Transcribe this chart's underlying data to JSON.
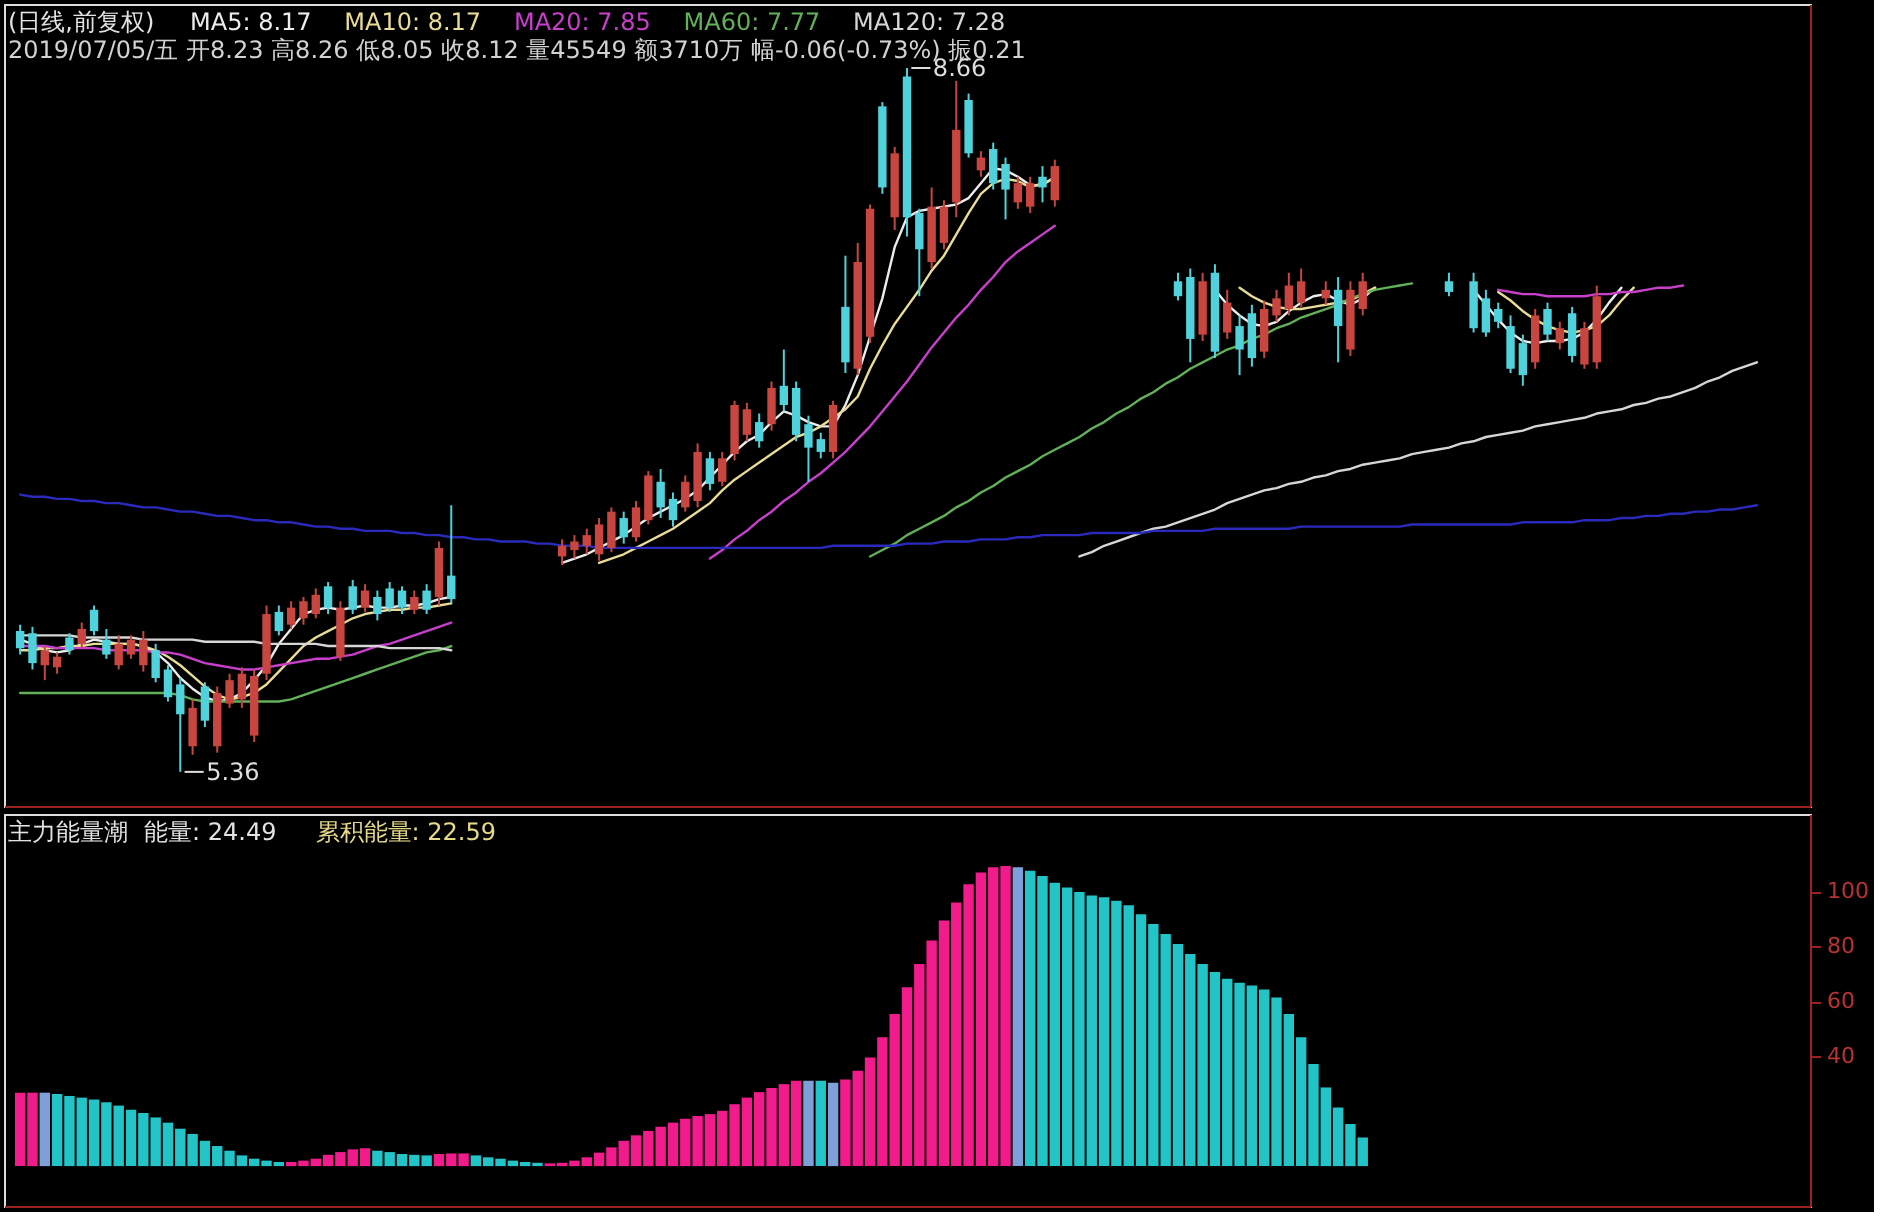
{
  "chart_data": [
    {
      "type": "candlestick",
      "title": "(日线,前复权)",
      "subtitle": "2019/07/05/五 开8.23 高8.26 低8.05 收8.12 量45549 额3710万 幅-0.06(-0.73%) 振0.21",
      "legend": "top left",
      "tick_labels": false,
      "ylim": [
        5.2,
        8.96
      ],
      "categories": [
        null,
        null,
        null,
        null,
        null,
        null,
        null,
        null,
        null,
        null,
        null,
        null,
        null,
        null,
        null,
        null,
        null,
        null,
        null,
        null,
        null,
        null,
        null,
        null,
        null,
        null,
        null,
        null,
        null,
        null,
        null,
        null,
        null,
        null,
        null,
        null,
        null,
        null,
        null,
        null,
        null,
        null,
        null,
        null,
        null,
        null,
        null,
        null,
        null,
        null,
        null,
        null,
        null,
        null,
        null,
        null,
        null,
        null,
        null,
        null,
        null,
        null,
        null,
        null,
        null,
        null,
        null,
        null,
        null,
        null,
        null,
        null,
        null,
        null,
        null,
        null,
        null,
        null,
        null,
        null,
        null,
        null,
        null,
        null,
        null,
        null,
        null,
        null,
        null,
        null,
        null,
        null,
        null,
        null,
        null,
        null,
        null,
        null,
        null,
        null,
        null,
        null,
        null,
        null,
        null,
        null,
        null,
        null,
        null,
        null,
        null,
        null,
        null,
        null,
        null,
        null,
        null,
        null,
        null,
        null,
        null,
        null,
        null,
        null,
        null,
        null,
        null,
        null,
        null,
        null,
        null,
        null,
        null,
        null,
        null,
        null,
        null,
        null,
        null,
        null,
        null,
        null
      ],
      "ohlc": [
        [
          6.02,
          6.05,
          5.91,
          5.94
        ],
        [
          6.01,
          6.04,
          5.84,
          5.87
        ],
        [
          5.86,
          5.95,
          5.79,
          5.93
        ],
        [
          5.85,
          5.92,
          5.82,
          5.9
        ],
        [
          5.99,
          6.01,
          5.91,
          5.93
        ],
        [
          5.96,
          6.06,
          5.94,
          6.03
        ],
        [
          6.12,
          6.14,
          6.0,
          6.02
        ],
        [
          5.98,
          6.03,
          5.89,
          5.91
        ],
        [
          5.86,
          6.0,
          5.84,
          5.96
        ],
        [
          5.91,
          6.0,
          5.89,
          5.98
        ],
        [
          5.86,
          6.02,
          5.83,
          5.98
        ],
        [
          5.93,
          5.96,
          5.78,
          5.8
        ],
        [
          5.84,
          5.86,
          5.69,
          5.71
        ],
        [
          5.77,
          5.8,
          5.36,
          5.63
        ],
        [
          5.48,
          5.7,
          5.44,
          5.66
        ],
        [
          5.76,
          5.78,
          5.57,
          5.6
        ],
        [
          5.48,
          5.76,
          5.45,
          5.73
        ],
        [
          5.68,
          5.82,
          5.66,
          5.79
        ],
        [
          5.7,
          5.85,
          5.66,
          5.82
        ],
        [
          5.53,
          5.84,
          5.5,
          5.81
        ],
        [
          5.82,
          6.14,
          5.79,
          6.1
        ],
        [
          6.11,
          6.14,
          6.0,
          6.02
        ],
        [
          6.05,
          6.16,
          6.03,
          6.13
        ],
        [
          6.08,
          6.18,
          6.05,
          6.16
        ],
        [
          6.1,
          6.22,
          6.08,
          6.19
        ],
        [
          6.23,
          6.25,
          6.1,
          6.13
        ],
        [
          5.9,
          6.16,
          5.88,
          6.13
        ],
        [
          6.23,
          6.26,
          6.1,
          6.12
        ],
        [
          6.13,
          6.24,
          6.11,
          6.21
        ],
        [
          6.18,
          6.21,
          6.07,
          6.1
        ],
        [
          6.22,
          6.25,
          6.11,
          6.13
        ],
        [
          6.21,
          6.23,
          6.1,
          6.13
        ],
        [
          6.12,
          6.21,
          6.1,
          6.18
        ],
        [
          6.21,
          6.24,
          6.1,
          6.12
        ],
        [
          6.18,
          6.44,
          6.14,
          6.41
        ],
        [
          6.28,
          6.61,
          6.15,
          6.17
        ],
        null,
        null,
        null,
        null,
        null,
        null,
        null,
        null,
        [
          6.37,
          6.45,
          6.33,
          6.42
        ],
        [
          6.4,
          6.47,
          6.36,
          6.44
        ],
        [
          6.42,
          6.5,
          6.38,
          6.47
        ],
        [
          6.38,
          6.55,
          6.35,
          6.52
        ],
        [
          6.41,
          6.6,
          6.39,
          6.58
        ],
        [
          6.55,
          6.58,
          6.43,
          6.46
        ],
        [
          6.46,
          6.63,
          6.44,
          6.6
        ],
        [
          6.54,
          6.77,
          6.52,
          6.75
        ],
        [
          6.72,
          6.78,
          6.55,
          6.6
        ],
        [
          6.64,
          6.67,
          6.51,
          6.54
        ],
        [
          6.6,
          6.75,
          6.58,
          6.72
        ],
        [
          6.63,
          6.9,
          6.6,
          6.86
        ],
        [
          6.83,
          6.86,
          6.68,
          6.71
        ],
        [
          6.72,
          6.86,
          6.7,
          6.83
        ],
        [
          6.85,
          7.1,
          6.82,
          7.08
        ],
        [
          6.94,
          7.09,
          6.91,
          7.06
        ],
        [
          7.0,
          7.04,
          6.88,
          6.91
        ],
        [
          6.99,
          7.19,
          6.96,
          7.16
        ],
        [
          7.17,
          7.34,
          7.05,
          7.08
        ],
        [
          7.16,
          7.19,
          6.91,
          6.94
        ],
        [
          6.99,
          7.03,
          6.72,
          6.88
        ],
        [
          6.92,
          6.95,
          6.83,
          6.86
        ],
        [
          6.86,
          7.1,
          6.83,
          7.08
        ],
        [
          7.54,
          7.78,
          7.23,
          7.28
        ],
        [
          7.25,
          7.84,
          7.22,
          7.75
        ],
        [
          7.4,
          8.02,
          7.37,
          8.0
        ],
        [
          8.48,
          8.5,
          8.07,
          8.1
        ],
        [
          7.96,
          8.29,
          7.9,
          8.26
        ],
        [
          8.62,
          8.66,
          7.87,
          7.96
        ],
        [
          7.98,
          8.0,
          7.59,
          7.81
        ],
        [
          7.75,
          8.1,
          7.72,
          8.01
        ],
        [
          7.84,
          8.04,
          7.81,
          8.01
        ],
        [
          8.03,
          8.6,
          7.96,
          8.37
        ],
        [
          8.51,
          8.54,
          8.24,
          8.26
        ],
        [
          8.18,
          8.27,
          8.15,
          8.24
        ],
        [
          8.28,
          8.31,
          8.09,
          8.12
        ],
        [
          8.21,
          8.24,
          7.95,
          8.09
        ],
        [
          8.03,
          8.15,
          8.0,
          8.12
        ],
        [
          8.01,
          8.15,
          7.98,
          8.12
        ],
        [
          8.15,
          8.2,
          8.03,
          8.1
        ],
        [
          8.04,
          8.23,
          8.01,
          8.2
        ],
        null,
        null,
        null,
        null,
        null,
        null,
        null,
        null,
        null,
        [
          7.66,
          7.7,
          7.57,
          7.59
        ],
        [
          7.68,
          7.72,
          7.28,
          7.39
        ],
        [
          7.41,
          7.7,
          7.38,
          7.66
        ],
        [
          7.7,
          7.74,
          7.3,
          7.33
        ],
        [
          7.42,
          7.62,
          7.39,
          7.56
        ],
        [
          7.45,
          7.5,
          7.22,
          7.34
        ],
        [
          7.51,
          7.55,
          7.26,
          7.3
        ],
        [
          7.33,
          7.57,
          7.3,
          7.53
        ],
        [
          7.5,
          7.62,
          7.47,
          7.58
        ],
        [
          7.53,
          7.7,
          7.5,
          7.64
        ],
        [
          7.56,
          7.72,
          7.54,
          7.66
        ],
        null,
        [
          7.58,
          7.66,
          7.55,
          7.62
        ],
        [
          7.62,
          7.68,
          7.28,
          7.45
        ],
        [
          7.34,
          7.66,
          7.31,
          7.62
        ],
        [
          7.53,
          7.7,
          7.5,
          7.66
        ],
        null,
        null,
        null,
        null,
        null,
        null,
        [
          7.66,
          7.7,
          7.59,
          7.61
        ],
        null,
        [
          7.66,
          7.7,
          7.42,
          7.44
        ],
        [
          7.58,
          7.62,
          7.4,
          7.42
        ],
        [
          7.53,
          7.56,
          7.44,
          7.47
        ],
        [
          7.45,
          7.5,
          7.23,
          7.25
        ],
        [
          7.37,
          7.41,
          7.17,
          7.22
        ],
        [
          7.28,
          7.53,
          7.25,
          7.5
        ],
        [
          7.53,
          7.56,
          7.38,
          7.41
        ],
        [
          7.37,
          7.47,
          7.34,
          7.44
        ],
        [
          7.51,
          7.54,
          7.28,
          7.31
        ],
        [
          7.27,
          7.47,
          7.25,
          7.44
        ],
        [
          7.28,
          7.64,
          7.25,
          7.59
        ],
        null,
        null,
        null,
        null,
        null,
        null,
        null,
        null,
        null,
        null,
        null,
        null,
        null
      ],
      "colors": [
        "#50d2dc",
        "#50d2dc",
        "#c8463f",
        "#c8463f",
        "#50d2dc",
        "#c8463f",
        "#50d2dc",
        "#50d2dc",
        "#c8463f",
        "#c8463f",
        "#c8463f",
        "#50d2dc",
        "#50d2dc",
        "#50d2dc",
        "#c8463f",
        "#50d2dc",
        "#c8463f",
        "#c8463f",
        "#c8463f",
        "#c8463f",
        "#c8463f",
        "#50d2dc",
        "#c8463f",
        "#c8463f",
        "#c8463f",
        "#50d2dc",
        "#c8463f",
        "#50d2dc",
        "#c8463f",
        "#50d2dc",
        "#50d2dc",
        "#50d2dc",
        "#c8463f",
        "#50d2dc",
        "#c8463f",
        "#50d2dc",
        null,
        null,
        null,
        null,
        null,
        null,
        null,
        null,
        "#c8463f",
        "#c8463f",
        "#c8463f",
        "#c8463f",
        "#c8463f",
        "#50d2dc",
        "#c8463f",
        "#c8463f",
        "#50d2dc",
        "#50d2dc",
        "#c8463f",
        "#c8463f",
        "#50d2dc",
        "#c8463f",
        "#c8463f",
        "#c8463f",
        "#50d2dc",
        "#c8463f",
        "#50d2dc",
        "#50d2dc",
        "#50d2dc",
        "#50d2dc",
        "#c8463f",
        "#50d2dc",
        "#c8463f",
        "#c8463f",
        "#50d2dc",
        "#c8463f",
        "#50d2dc",
        "#50d2dc",
        "#c8463f",
        "#c8463f",
        "#c8463f",
        "#50d2dc",
        "#c8463f",
        "#50d2dc",
        "#50d2dc",
        "#c8463f",
        "#c8463f",
        "#50d2dc",
        "#c8463f",
        null,
        null,
        null,
        null,
        null,
        null,
        null,
        null,
        null,
        "#50d2dc",
        "#50d2dc",
        "#c8463f",
        "#50d2dc",
        "#c8463f",
        "#50d2dc",
        "#50d2dc",
        "#c8463f",
        "#c8463f",
        "#c8463f",
        "#c8463f",
        null,
        "#c8463f",
        "#50d2dc",
        "#c8463f",
        "#c8463f",
        null,
        null,
        null,
        null,
        null,
        null,
        "#50d2dc",
        null,
        "#50d2dc",
        "#50d2dc",
        "#50d2dc",
        "#50d2dc",
        "#50d2dc",
        "#c8463f",
        "#50d2dc",
        "#c8463f",
        "#50d2dc",
        "#c8463f",
        "#c8463f",
        null,
        null,
        null,
        null,
        null,
        null,
        null,
        null,
        null,
        null,
        null,
        null,
        null
      ],
      "series": [
        {
          "type": "line",
          "name": "MA5: 8.17",
          "color": "#ececec",
          "values": [
            5.98,
            5.96,
            5.93,
            5.92,
            5.93,
            5.96,
            5.98,
            5.97,
            5.96,
            5.96,
            5.95,
            5.92,
            5.87,
            5.8,
            5.75,
            5.71,
            5.69,
            5.7,
            5.73,
            5.79,
            5.86,
            5.96,
            6.03,
            6.1,
            6.12,
            6.13,
            6.12,
            6.13,
            6.14,
            6.13,
            6.13,
            6.14,
            6.14,
            6.15,
            6.17,
            6.18,
            null,
            null,
            null,
            null,
            null,
            null,
            null,
            null,
            6.34,
            6.36,
            6.38,
            6.41,
            6.44,
            6.47,
            6.51,
            6.55,
            6.58,
            6.61,
            6.64,
            6.68,
            6.74,
            6.8,
            6.86,
            6.91,
            6.94,
            7.0,
            7.05,
            7.03,
            7.0,
            6.98,
            6.98,
            7.08,
            7.22,
            7.4,
            7.58,
            7.82,
            7.96,
            7.99,
            8.0,
            8.01,
            8.02,
            8.05,
            8.12,
            8.19,
            8.18,
            8.15,
            8.11,
            8.11,
            8.15,
            null,
            null,
            null,
            null,
            null,
            null,
            null,
            null,
            null,
            null,
            null,
            null,
            7.62,
            7.55,
            7.5,
            7.46,
            7.45,
            7.47,
            7.52,
            7.56,
            7.59,
            7.6,
            7.57,
            7.55,
            7.58,
            7.63,
            null,
            null,
            null,
            null,
            null,
            null,
            null,
            7.62,
            7.55,
            7.48,
            7.42,
            7.38,
            7.37,
            7.38,
            7.38,
            7.39,
            7.42,
            7.48,
            7.56,
            7.63,
            null,
            null,
            null,
            null,
            null,
            null,
            null,
            null,
            null,
            null,
            null
          ]
        },
        {
          "type": "line",
          "name": "MA10: 8.17",
          "color": "#e8dc96",
          "values": [
            5.93,
            5.93,
            5.94,
            5.94,
            5.95,
            5.95,
            5.96,
            5.96,
            5.96,
            5.96,
            5.95,
            5.93,
            5.9,
            5.86,
            5.81,
            5.76,
            5.72,
            5.7,
            5.71,
            5.73,
            5.77,
            5.83,
            5.89,
            5.95,
            5.99,
            6.02,
            6.05,
            6.08,
            6.1,
            6.11,
            6.12,
            6.12,
            6.13,
            6.13,
            6.14,
            6.15,
            null,
            null,
            null,
            null,
            null,
            null,
            null,
            null,
            null,
            null,
            null,
            6.34,
            6.36,
            6.38,
            6.41,
            6.44,
            6.47,
            6.5,
            6.54,
            6.58,
            6.62,
            6.68,
            6.73,
            6.77,
            6.81,
            6.85,
            6.89,
            6.93,
            6.95,
            6.98,
            7.02,
            7.06,
            7.12,
            7.25,
            7.36,
            7.46,
            7.54,
            7.62,
            7.71,
            7.78,
            7.88,
            7.98,
            8.07,
            8.12,
            8.14,
            8.13,
            8.1,
            8.12,
            8.14,
            null,
            null,
            null,
            null,
            null,
            null,
            null,
            null,
            null,
            null,
            null,
            null,
            null,
            null,
            7.63,
            7.59,
            7.56,
            7.54,
            7.53,
            7.53,
            7.54,
            7.55,
            7.56,
            7.57,
            7.6,
            7.63,
            null,
            null,
            null,
            null,
            null,
            null,
            null,
            null,
            null,
            7.61,
            7.57,
            7.52,
            7.48,
            7.45,
            7.43,
            7.42,
            7.43,
            7.45,
            7.5,
            7.57,
            7.63,
            null,
            null,
            null,
            null,
            null,
            null,
            null,
            null,
            null,
            null
          ]
        },
        {
          "type": "line",
          "name": "MA20: 7.85",
          "color": "#c83fcc",
          "values": [
            5.95,
            5.95,
            5.95,
            5.94,
            5.94,
            5.94,
            5.94,
            5.93,
            5.93,
            5.93,
            5.93,
            5.92,
            5.92,
            5.91,
            5.89,
            5.87,
            5.86,
            5.85,
            5.84,
            5.84,
            5.85,
            5.86,
            5.87,
            5.88,
            5.89,
            5.89,
            5.9,
            5.91,
            5.93,
            5.95,
            5.96,
            5.98,
            6.0,
            6.02,
            6.04,
            6.06,
            null,
            null,
            null,
            null,
            null,
            null,
            null,
            null,
            null,
            null,
            null,
            null,
            null,
            null,
            null,
            null,
            null,
            null,
            null,
            null,
            6.36,
            6.4,
            6.45,
            6.49,
            6.54,
            6.58,
            6.63,
            6.67,
            6.72,
            6.76,
            6.81,
            6.86,
            6.92,
            6.98,
            7.05,
            7.12,
            7.19,
            7.27,
            7.35,
            7.42,
            7.49,
            7.55,
            7.62,
            7.68,
            7.75,
            7.8,
            7.84,
            7.88,
            7.92,
            null,
            null,
            null,
            null,
            null,
            null,
            null,
            null,
            null,
            null,
            null,
            null,
            null,
            null,
            null,
            null,
            null,
            null,
            null,
            null,
            null,
            null,
            null,
            null,
            null,
            null,
            null,
            null,
            null,
            null,
            null,
            null,
            null,
            null,
            null,
            7.62,
            7.61,
            7.6,
            7.6,
            7.59,
            7.59,
            7.59,
            7.59,
            7.6,
            7.6,
            7.61,
            7.61,
            7.62,
            7.63,
            7.63,
            7.64,
            null,
            null,
            null,
            null,
            null,
            null
          ]
        },
        {
          "type": "line",
          "name": "MA60: 7.77",
          "color": "#62b05a",
          "values": [
            5.73,
            5.73,
            5.73,
            5.73,
            5.73,
            5.73,
            5.73,
            5.73,
            5.73,
            5.73,
            5.73,
            5.73,
            5.73,
            5.72,
            5.7,
            5.69,
            5.69,
            5.69,
            5.69,
            5.69,
            5.69,
            5.69,
            5.7,
            5.72,
            5.74,
            5.76,
            5.78,
            5.8,
            5.82,
            5.84,
            5.86,
            5.88,
            5.9,
            5.92,
            5.93,
            5.95,
            null,
            null,
            null,
            null,
            null,
            null,
            null,
            null,
            null,
            null,
            null,
            null,
            null,
            null,
            null,
            null,
            null,
            null,
            null,
            null,
            null,
            null,
            null,
            null,
            null,
            null,
            null,
            null,
            null,
            null,
            null,
            null,
            null,
            6.37,
            6.4,
            6.43,
            6.47,
            6.5,
            6.53,
            6.56,
            6.6,
            6.63,
            6.67,
            6.7,
            6.74,
            6.77,
            6.8,
            6.84,
            6.87,
            6.9,
            6.93,
            6.97,
            7.0,
            7.04,
            7.07,
            7.11,
            7.14,
            7.18,
            7.21,
            7.25,
            7.28,
            7.31,
            7.34,
            7.36,
            7.39,
            7.41,
            7.44,
            7.46,
            7.49,
            7.51,
            7.53,
            7.55,
            7.58,
            7.6,
            7.62,
            7.63,
            7.64,
            7.65,
            null,
            null,
            null,
            null,
            null,
            null,
            null,
            null,
            null,
            null,
            null,
            null,
            null,
            null,
            null,
            null,
            null,
            null,
            null,
            null,
            null,
            null,
            null,
            null,
            null,
            null,
            null,
            null
          ]
        },
        {
          "type": "line",
          "name": "MA120: 7.28",
          "color": "#d6d6d6",
          "values": [
            6.0,
            6.0,
            6.0,
            6.0,
            6.0,
            5.99,
            5.99,
            5.99,
            5.99,
            5.99,
            5.98,
            5.98,
            5.98,
            5.98,
            5.98,
            5.97,
            5.97,
            5.97,
            5.97,
            5.97,
            5.96,
            5.96,
            5.96,
            5.96,
            5.96,
            5.95,
            5.95,
            5.95,
            5.95,
            5.95,
            5.94,
            5.94,
            5.94,
            5.94,
            5.94,
            5.93,
            null,
            null,
            null,
            null,
            null,
            null,
            null,
            null,
            null,
            null,
            null,
            null,
            null,
            null,
            null,
            null,
            null,
            null,
            null,
            null,
            null,
            null,
            null,
            null,
            null,
            null,
            null,
            null,
            null,
            null,
            null,
            null,
            null,
            null,
            null,
            null,
            null,
            null,
            null,
            null,
            null,
            null,
            null,
            null,
            null,
            null,
            null,
            null,
            null,
            null,
            6.37,
            6.39,
            6.42,
            6.44,
            6.46,
            6.48,
            6.5,
            6.51,
            6.53,
            6.55,
            6.57,
            6.59,
            6.62,
            6.64,
            6.66,
            6.68,
            6.69,
            6.71,
            6.72,
            6.74,
            6.75,
            6.77,
            6.78,
            6.8,
            6.81,
            6.82,
            6.83,
            6.85,
            6.86,
            6.87,
            6.88,
            6.9,
            6.91,
            6.93,
            6.94,
            6.95,
            6.96,
            6.98,
            6.99,
            7.0,
            7.01,
            7.02,
            7.04,
            7.05,
            7.06,
            7.08,
            7.09,
            7.11,
            7.12,
            7.14,
            7.16,
            7.19,
            7.21,
            7.24,
            7.26,
            7.28
          ]
        },
        {
          "type": "line",
          "color": "#2a2abc",
          "values": [
            6.66,
            6.65,
            6.65,
            6.64,
            6.64,
            6.63,
            6.63,
            6.62,
            6.62,
            6.61,
            6.6,
            6.6,
            6.59,
            6.58,
            6.58,
            6.57,
            6.56,
            6.56,
            6.55,
            6.54,
            6.54,
            6.53,
            6.53,
            6.52,
            6.51,
            6.51,
            6.5,
            6.5,
            6.49,
            6.49,
            6.49,
            6.48,
            6.48,
            6.47,
            6.47,
            6.46,
            6.46,
            6.45,
            6.45,
            6.44,
            6.44,
            6.44,
            6.43,
            6.43,
            6.42,
            6.42,
            6.42,
            6.41,
            6.41,
            6.41,
            6.41,
            6.41,
            6.41,
            6.41,
            6.41,
            6.41,
            6.41,
            6.41,
            6.41,
            6.41,
            6.41,
            6.41,
            6.41,
            6.41,
            6.41,
            6.41,
            6.42,
            6.42,
            6.42,
            6.42,
            6.42,
            6.42,
            6.43,
            6.43,
            6.43,
            6.44,
            6.44,
            6.44,
            6.45,
            6.45,
            6.45,
            6.46,
            6.46,
            6.47,
            6.47,
            6.47,
            6.47,
            6.48,
            6.48,
            6.48,
            6.48,
            6.48,
            6.49,
            6.49,
            6.49,
            6.49,
            6.49,
            6.5,
            6.5,
            6.5,
            6.5,
            6.5,
            6.5,
            6.5,
            6.51,
            6.51,
            6.51,
            6.51,
            6.51,
            6.51,
            6.51,
            6.51,
            6.51,
            6.52,
            6.52,
            6.52,
            6.52,
            6.52,
            6.52,
            6.52,
            6.52,
            6.52,
            6.53,
            6.53,
            6.53,
            6.53,
            6.53,
            6.54,
            6.54,
            6.54,
            6.55,
            6.55,
            6.56,
            6.56,
            6.57,
            6.57,
            6.58,
            6.58,
            6.59,
            6.59,
            6.6,
            6.61
          ]
        }
      ],
      "annotations": [
        "8.66",
        "5.36"
      ]
    },
    {
      "type": "bar",
      "title": "主力能量潮",
      "annotations": [
        "能量: 24.49",
        "累积能量: 22.59"
      ],
      "tick_labels": "y",
      "ylim": [
        -14.5,
        128
      ],
      "yticks": [
        40,
        60,
        80,
        100
      ],
      "categories": [
        null,
        null,
        null,
        null,
        null,
        null,
        null,
        null,
        null,
        null,
        null,
        null,
        null,
        null,
        null,
        null,
        null,
        null,
        null,
        null,
        null,
        null,
        null,
        null,
        null,
        null,
        null,
        null,
        null,
        null,
        null,
        null,
        null,
        null,
        null,
        null,
        null,
        null,
        null,
        null,
        null,
        null,
        null,
        null,
        null,
        null,
        null,
        null,
        null,
        null,
        null,
        null,
        null,
        null,
        null,
        null,
        null,
        null,
        null,
        null,
        null,
        null,
        null,
        null,
        null,
        null,
        null,
        null,
        null,
        null,
        null,
        null,
        null,
        null,
        null,
        null,
        null,
        null,
        null,
        null,
        null,
        null,
        null,
        null,
        null,
        null,
        null,
        null,
        null,
        null,
        null,
        null,
        null,
        null,
        null,
        null,
        null,
        null,
        null,
        null,
        null,
        null,
        null,
        null,
        null,
        null,
        null,
        null,
        null,
        null,
        null,
        null,
        null,
        null,
        null,
        null,
        null,
        null,
        null,
        null,
        null,
        null,
        null,
        null,
        null,
        null,
        null,
        null,
        null,
        null,
        null,
        null,
        null,
        null,
        null,
        null,
        null,
        null,
        null,
        null,
        null,
        null
      ],
      "values": [
        26.7,
        26.7,
        26.7,
        26.2,
        25.5,
        24.9,
        24.2,
        23.2,
        22.0,
        20.5,
        19.3,
        17.7,
        15.8,
        13.6,
        11.7,
        9.2,
        7.3,
        5.6,
        3.9,
        2.7,
        2.0,
        1.5,
        1.5,
        2.0,
        2.7,
        4.1,
        5.1,
        6.1,
        6.5,
        5.6,
        5.1,
        4.4,
        4.1,
        3.9,
        4.4,
        4.6,
        4.6,
        3.9,
        3.2,
        2.7,
        2.0,
        1.5,
        1.2,
        1.0,
        1.2,
        2.0,
        3.2,
        4.9,
        6.8,
        9.2,
        11.2,
        12.8,
        14.3,
        15.8,
        17.2,
        18.2,
        18.9,
        20.1,
        22.5,
        24.9,
        26.9,
        28.4,
        29.8,
        31.0,
        31.0,
        31.0,
        30.3,
        31.5,
        34.7,
        39.5,
        46.8,
        55.3,
        65.0,
        73.5,
        82.0,
        89.3,
        95.8,
        102.5,
        106.7,
        108.6,
        109.1,
        108.6,
        107.4,
        105.5,
        103.0,
        101.3,
        99.6,
        98.4,
        97.7,
        96.5,
        94.8,
        91.6,
        88.0,
        84.4,
        80.7,
        77.1,
        73.5,
        70.6,
        68.1,
        66.7,
        65.7,
        64.2,
        61.3,
        55.3,
        46.8,
        37.1,
        28.6,
        21.3,
        15.3,
        10.4,
        null,
        null,
        null,
        null,
        null,
        null,
        null,
        null,
        null,
        null,
        null,
        null,
        null,
        null,
        null,
        null,
        null,
        null,
        null,
        null,
        null,
        null,
        null,
        null,
        null,
        null,
        null,
        null,
        null,
        null,
        null,
        null
      ],
      "colors": [
        "#f21b8c",
        "#f21b8c",
        "#7f9fd8",
        "#22c4c8",
        "#22c4c8",
        "#22c4c8",
        "#22c4c8",
        "#22c4c8",
        "#22c4c8",
        "#22c4c8",
        "#22c4c8",
        "#22c4c8",
        "#22c4c8",
        "#22c4c8",
        "#22c4c8",
        "#22c4c8",
        "#22c4c8",
        "#22c4c8",
        "#22c4c8",
        "#22c4c8",
        "#22c4c8",
        "#22c4c8",
        "#f21b8c",
        "#f21b8c",
        "#f21b8c",
        "#f21b8c",
        "#f21b8c",
        "#f21b8c",
        "#f21b8c",
        "#22c4c8",
        "#22c4c8",
        "#22c4c8",
        "#22c4c8",
        "#22c4c8",
        "#f21b8c",
        "#f21b8c",
        "#f21b8c",
        "#22c4c8",
        "#22c4c8",
        "#22c4c8",
        "#22c4c8",
        "#22c4c8",
        "#22c4c8",
        "#f21b8c",
        "#f21b8c",
        "#f21b8c",
        "#f21b8c",
        "#f21b8c",
        "#f21b8c",
        "#f21b8c",
        "#f21b8c",
        "#f21b8c",
        "#f21b8c",
        "#f21b8c",
        "#f21b8c",
        "#f21b8c",
        "#f21b8c",
        "#f21b8c",
        "#f21b8c",
        "#f21b8c",
        "#f21b8c",
        "#f21b8c",
        "#f21b8c",
        "#f21b8c",
        "#7f9fd8",
        "#22c4c8",
        "#7f9fd8",
        "#f21b8c",
        "#f21b8c",
        "#f21b8c",
        "#f21b8c",
        "#f21b8c",
        "#f21b8c",
        "#f21b8c",
        "#f21b8c",
        "#f21b8c",
        "#f21b8c",
        "#f21b8c",
        "#f21b8c",
        "#f21b8c",
        "#f21b8c",
        "#7f9fd8",
        "#22c4c8",
        "#22c4c8",
        "#22c4c8",
        "#22c4c8",
        "#22c4c8",
        "#22c4c8",
        "#22c4c8",
        "#22c4c8",
        "#22c4c8",
        "#22c4c8",
        "#22c4c8",
        "#22c4c8",
        "#22c4c8",
        "#22c4c8",
        "#22c4c8",
        "#22c4c8",
        "#22c4c8",
        "#22c4c8",
        "#22c4c8",
        "#22c4c8",
        "#22c4c8",
        "#22c4c8",
        "#22c4c8",
        "#22c4c8",
        "#22c4c8",
        "#22c4c8",
        "#22c4c8",
        "#22c4c8",
        null,
        null,
        null,
        null,
        null,
        null,
        null,
        null,
        null,
        null,
        null,
        null,
        null,
        null,
        null,
        null,
        null,
        null,
        null,
        null,
        null,
        null,
        null,
        null,
        null,
        null,
        null,
        null,
        null,
        null,
        null,
        null
      ]
    }
  ]
}
